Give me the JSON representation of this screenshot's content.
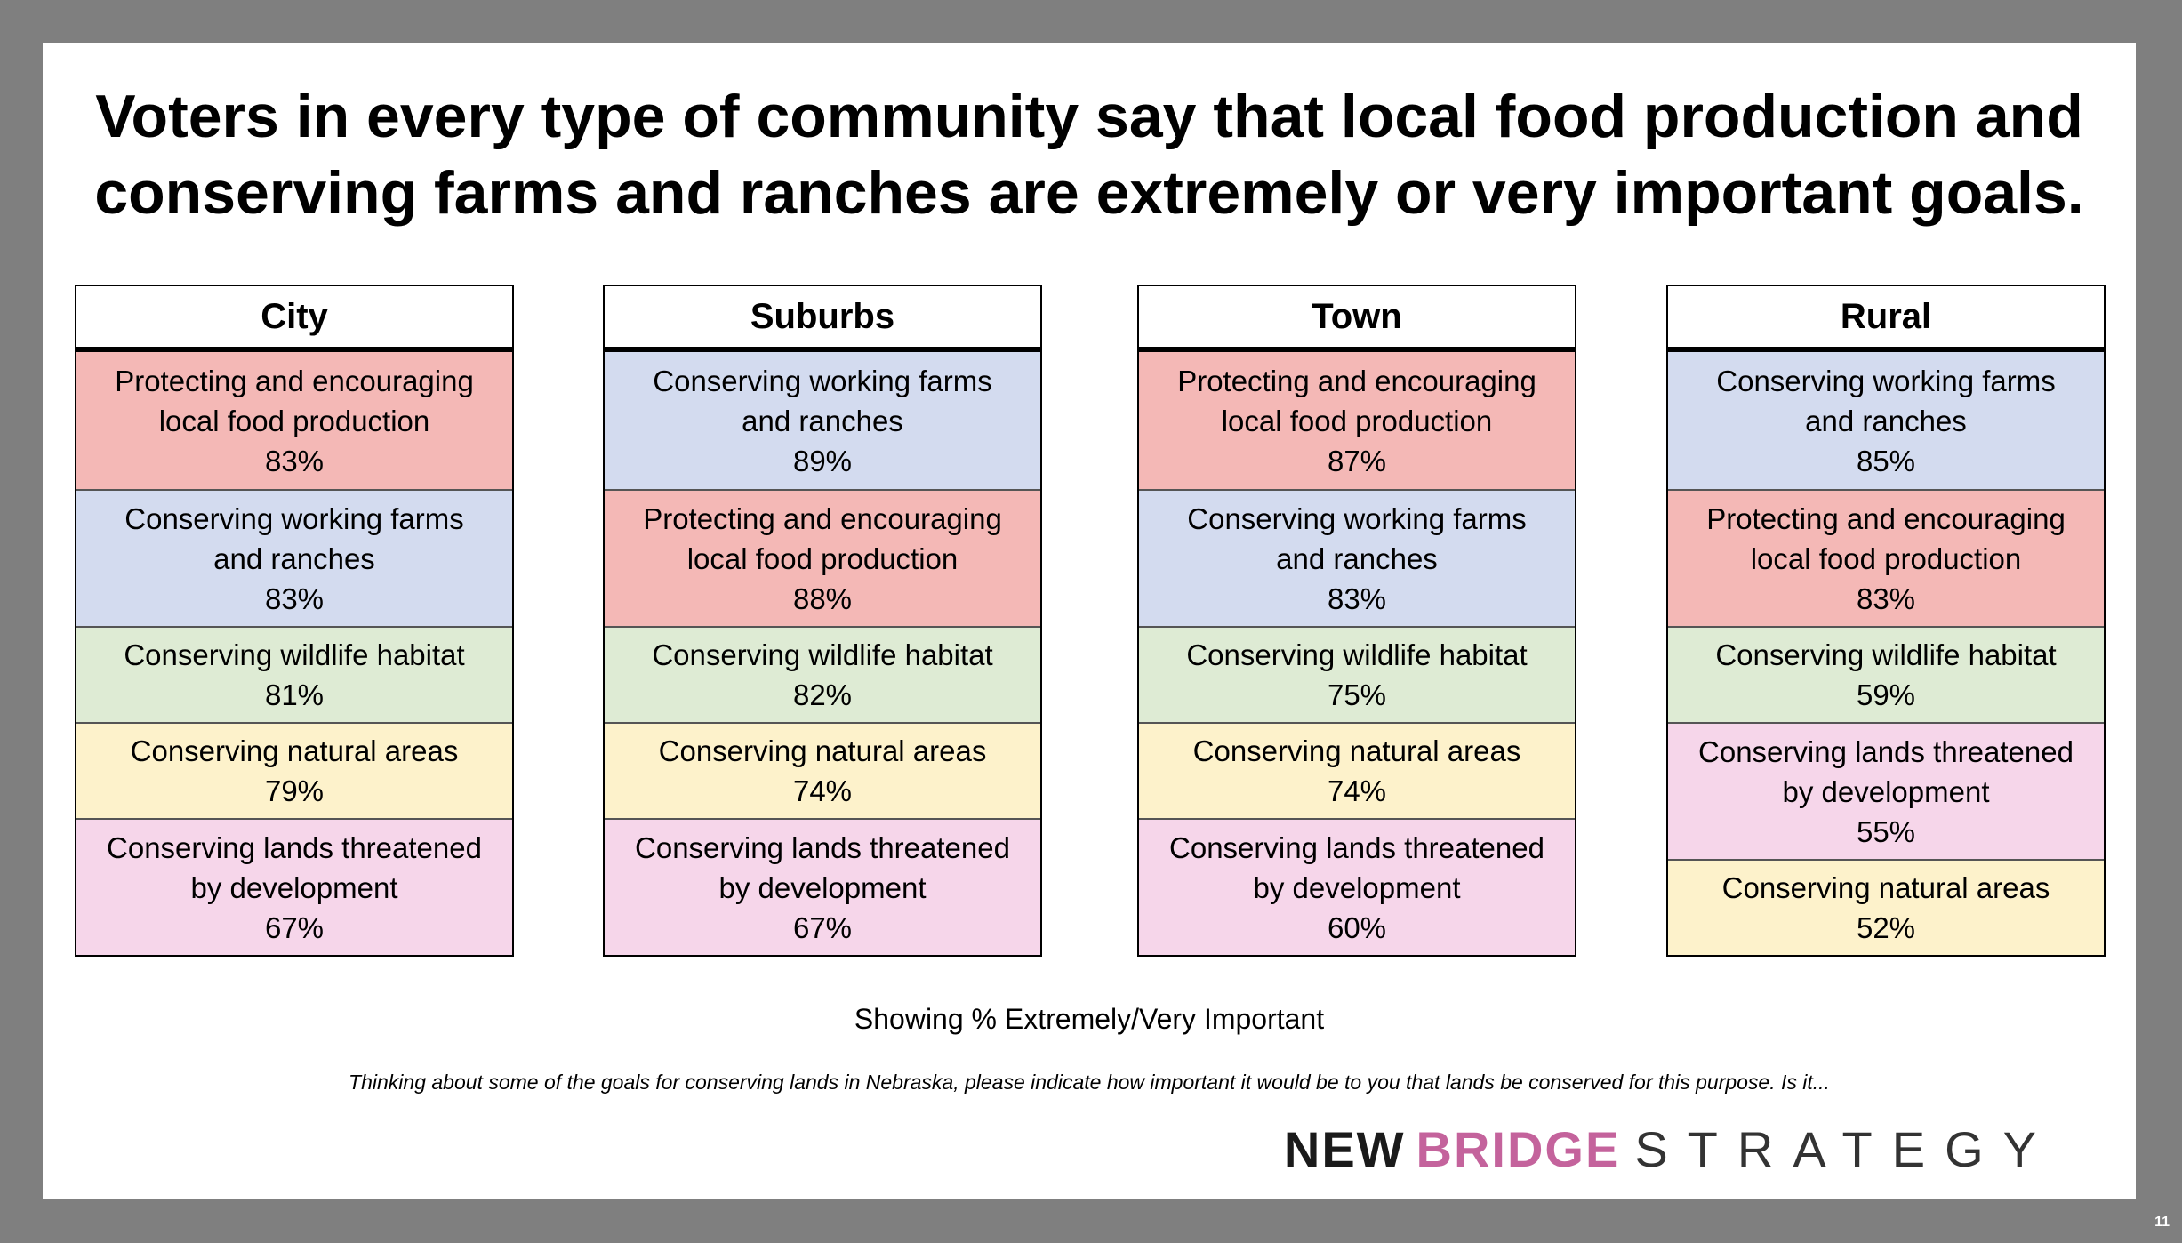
{
  "title": {
    "line1": "Voters in every type of community say that local food production and",
    "line2": "conserving farms and ranches are extremely or very important goals."
  },
  "colors": {
    "Protecting and encouraging local food production": "#f4b8b6",
    "Conserving working farms and ranches": "#d3dbef",
    "Conserving wildlife habitat": "#deebd4",
    "Conserving natural areas": "#fdf2cb",
    "Conserving lands threatened by development": "#f6d6ea"
  },
  "chart_data": {
    "type": "table",
    "note": "Showing % Extremely/Very Important",
    "tables": [
      {
        "name": "City",
        "rows": [
          {
            "label_lines": [
              "Protecting and encouraging",
              "local food production"
            ],
            "value": "83%",
            "category": "Protecting and encouraging local food production"
          },
          {
            "label_lines": [
              "Conserving working farms",
              "and ranches"
            ],
            "value": "83%",
            "category": "Conserving working farms and ranches"
          },
          {
            "label_lines": [
              "Conserving wildlife habitat"
            ],
            "value": "81%",
            "category": "Conserving wildlife habitat"
          },
          {
            "label_lines": [
              "Conserving natural areas"
            ],
            "value": "79%",
            "category": "Conserving natural areas"
          },
          {
            "label_lines": [
              "Conserving lands threatened",
              "by development"
            ],
            "value": "67%",
            "category": "Conserving lands threatened by development"
          }
        ]
      },
      {
        "name": "Suburbs",
        "rows": [
          {
            "label_lines": [
              "Conserving working farms",
              "and ranches"
            ],
            "value": "89%",
            "category": "Conserving working farms and ranches"
          },
          {
            "label_lines": [
              "Protecting and encouraging",
              "local food production"
            ],
            "value": "88%",
            "category": "Protecting and encouraging local food production"
          },
          {
            "label_lines": [
              "Conserving wildlife habitat"
            ],
            "value": "82%",
            "category": "Conserving wildlife habitat"
          },
          {
            "label_lines": [
              "Conserving natural areas"
            ],
            "value": "74%",
            "category": "Conserving natural areas"
          },
          {
            "label_lines": [
              "Conserving lands threatened",
              "by development"
            ],
            "value": "67%",
            "category": "Conserving lands threatened by development"
          }
        ]
      },
      {
        "name": "Town",
        "rows": [
          {
            "label_lines": [
              "Protecting and encouraging",
              "local food production"
            ],
            "value": "87%",
            "category": "Protecting and encouraging local food production"
          },
          {
            "label_lines": [
              "Conserving working farms",
              "and ranches"
            ],
            "value": "83%",
            "category": "Conserving working farms and ranches"
          },
          {
            "label_lines": [
              "Conserving wildlife habitat"
            ],
            "value": "75%",
            "category": "Conserving wildlife habitat"
          },
          {
            "label_lines": [
              "Conserving natural areas"
            ],
            "value": "74%",
            "category": "Conserving natural areas"
          },
          {
            "label_lines": [
              "Conserving lands threatened",
              "by development"
            ],
            "value": "60%",
            "category": "Conserving lands threatened by development"
          }
        ]
      },
      {
        "name": "Rural",
        "rows": [
          {
            "label_lines": [
              "Conserving working farms",
              "and ranches"
            ],
            "value": "85%",
            "category": "Conserving working farms and ranches"
          },
          {
            "label_lines": [
              "Protecting and encouraging",
              "local food production"
            ],
            "value": "83%",
            "category": "Protecting and encouraging local food production"
          },
          {
            "label_lines": [
              "Conserving wildlife habitat"
            ],
            "value": "59%",
            "category": "Conserving wildlife habitat"
          },
          {
            "label_lines": [
              "Conserving lands threatened",
              "by development"
            ],
            "value": "55%",
            "category": "Conserving lands threatened by development"
          },
          {
            "label_lines": [
              "Conserving natural areas"
            ],
            "value": "52%",
            "category": "Conserving natural areas"
          }
        ]
      }
    ]
  },
  "question": "Thinking about some of the goals for conserving lands in Nebraska, please indicate how important it would be to you that lands be conserved for this purpose. Is it...",
  "logo": {
    "word1": "NEW",
    "word2": "BRIDGE",
    "word3": "STRATEGY"
  },
  "page_number": "11"
}
